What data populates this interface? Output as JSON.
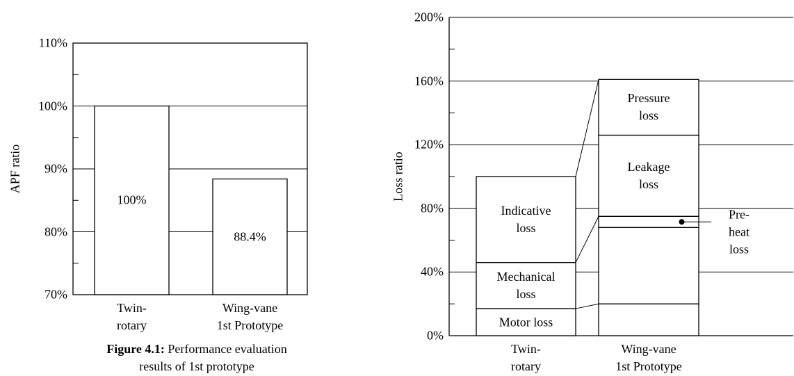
{
  "chart_data": [
    {
      "type": "bar",
      "ylabel": "APF ratio",
      "categories": [
        "Twin-\nrotary",
        "Wing-vane\n1st Prototype"
      ],
      "values": [
        100,
        88.4
      ],
      "value_labels": [
        "100%",
        "88.4%"
      ],
      "color": "#ffffff",
      "ylim": [
        70,
        110
      ],
      "yticks": [
        {
          "value": 70,
          "label": "70%"
        },
        {
          "value": 80,
          "label": "80%"
        },
        {
          "value": 90,
          "label": "90%"
        },
        {
          "value": 100,
          "label": "100%"
        },
        {
          "value": 110,
          "label": "110%"
        }
      ],
      "minor_yticks": [
        75,
        85,
        95,
        105
      ],
      "grid": true,
      "caption_label": "Figure 4.1:",
      "caption": "Performance evaluation results of 1st prototype"
    },
    {
      "type": "stacked_bar",
      "ylabel": "Loss ratio",
      "categories": [
        "Twin-\nrotary",
        "Wing-vane\n1st Prototype"
      ],
      "series": [
        {
          "name": "Motor loss",
          "color": "#ffffff",
          "values": [
            17,
            20
          ]
        },
        {
          "name": "Mechanical loss",
          "color": "#ffffff",
          "values": [
            29,
            48
          ]
        },
        {
          "name": "Pre-heat loss",
          "color": "#ffffff",
          "values": [
            null,
            7
          ]
        },
        {
          "name": "Indicative loss",
          "color": "#ffffff",
          "values": [
            54,
            null
          ]
        },
        {
          "name": "Leakage loss",
          "color": "#ffffff",
          "values": [
            null,
            51
          ]
        },
        {
          "name": "Pressure loss",
          "color": "#ffffff",
          "values": [
            null,
            35
          ]
        }
      ],
      "ylim": [
        0,
        200
      ],
      "yticks": [
        {
          "value": 0,
          "label": "0%"
        },
        {
          "value": 40,
          "label": "40%"
        },
        {
          "value": 80,
          "label": "80%"
        },
        {
          "value": 120,
          "label": "120%"
        },
        {
          "value": 160,
          "label": "160%"
        },
        {
          "value": 200,
          "label": "200%"
        }
      ],
      "minor_yticks": [
        20,
        60,
        100,
        140,
        180
      ],
      "grid": true
    }
  ]
}
